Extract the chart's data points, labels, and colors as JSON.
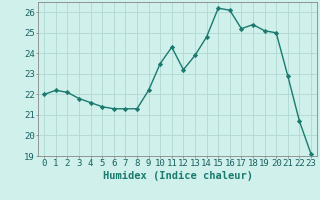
{
  "x": [
    0,
    1,
    2,
    3,
    4,
    5,
    6,
    7,
    8,
    9,
    10,
    11,
    12,
    13,
    14,
    15,
    16,
    17,
    18,
    19,
    20,
    21,
    22,
    23
  ],
  "y": [
    22.0,
    22.2,
    22.1,
    21.8,
    21.6,
    21.4,
    21.3,
    21.3,
    21.3,
    22.2,
    23.5,
    24.3,
    23.2,
    23.9,
    24.8,
    26.2,
    26.1,
    25.2,
    25.4,
    25.1,
    25.0,
    22.9,
    20.7,
    19.1
  ],
  "line_color": "#1a7a6e",
  "marker": "D",
  "marker_size": 2.2,
  "bg_color": "#cff0eb",
  "grid_color": "#b0d8d2",
  "xlabel": "Humidex (Indice chaleur)",
  "xlim": [
    -0.5,
    23.5
  ],
  "ylim": [
    19,
    26.5
  ],
  "yticks": [
    19,
    20,
    21,
    22,
    23,
    24,
    25,
    26
  ],
  "xticks": [
    0,
    1,
    2,
    3,
    4,
    5,
    6,
    7,
    8,
    9,
    10,
    11,
    12,
    13,
    14,
    15,
    16,
    17,
    18,
    19,
    20,
    21,
    22,
    23
  ],
  "xlabel_fontsize": 7.5,
  "tick_fontsize": 6.5,
  "line_width": 1.0,
  "spine_color": "#888888"
}
